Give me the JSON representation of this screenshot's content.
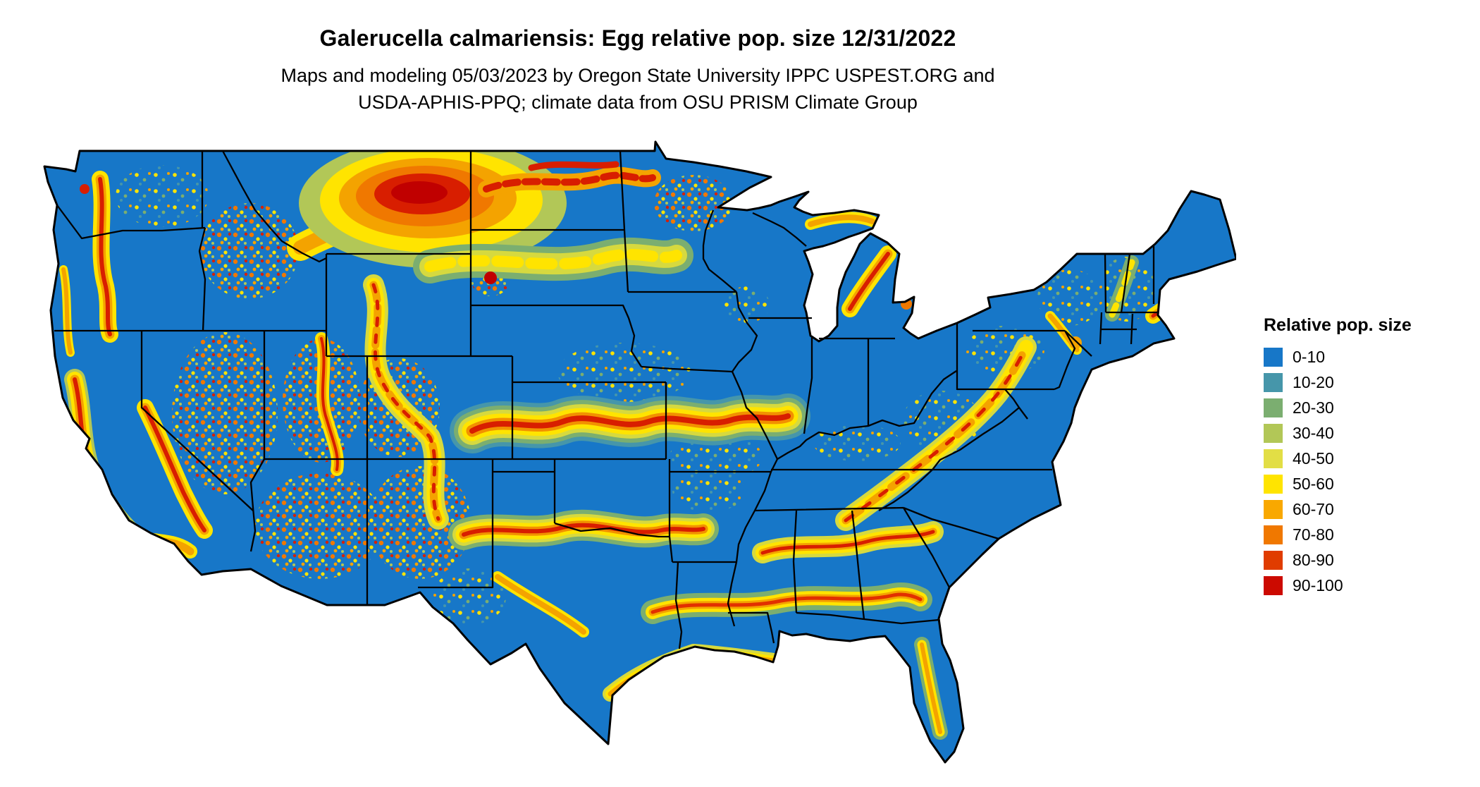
{
  "header": {
    "title": "Galerucella calmariensis: Egg relative pop. size 12/31/2022",
    "subtitle_line1": "Maps and modeling 05/03/2023 by Oregon State University IPPC USPEST.ORG and",
    "subtitle_line2": "USDA-APHIS-PPQ; climate data from OSU PRISM Climate Group"
  },
  "legend": {
    "title": "Relative pop. size",
    "items": [
      {
        "label": "0-10",
        "color": "#1777C8"
      },
      {
        "label": "10-20",
        "color": "#4696AA"
      },
      {
        "label": "20-30",
        "color": "#7BAE70"
      },
      {
        "label": "30-40",
        "color": "#B2C757"
      },
      {
        "label": "40-50",
        "color": "#E2DE45"
      },
      {
        "label": "50-60",
        "color": "#FFE400"
      },
      {
        "label": "60-70",
        "color": "#F9A800"
      },
      {
        "label": "70-80",
        "color": "#F07800"
      },
      {
        "label": "80-90",
        "color": "#E03C00"
      },
      {
        "label": "90-100",
        "color": "#CC0A00"
      }
    ]
  },
  "map": {
    "base_color": "#1777C8",
    "boundary_color": "#000000",
    "background_color": "#FFFFFF"
  }
}
